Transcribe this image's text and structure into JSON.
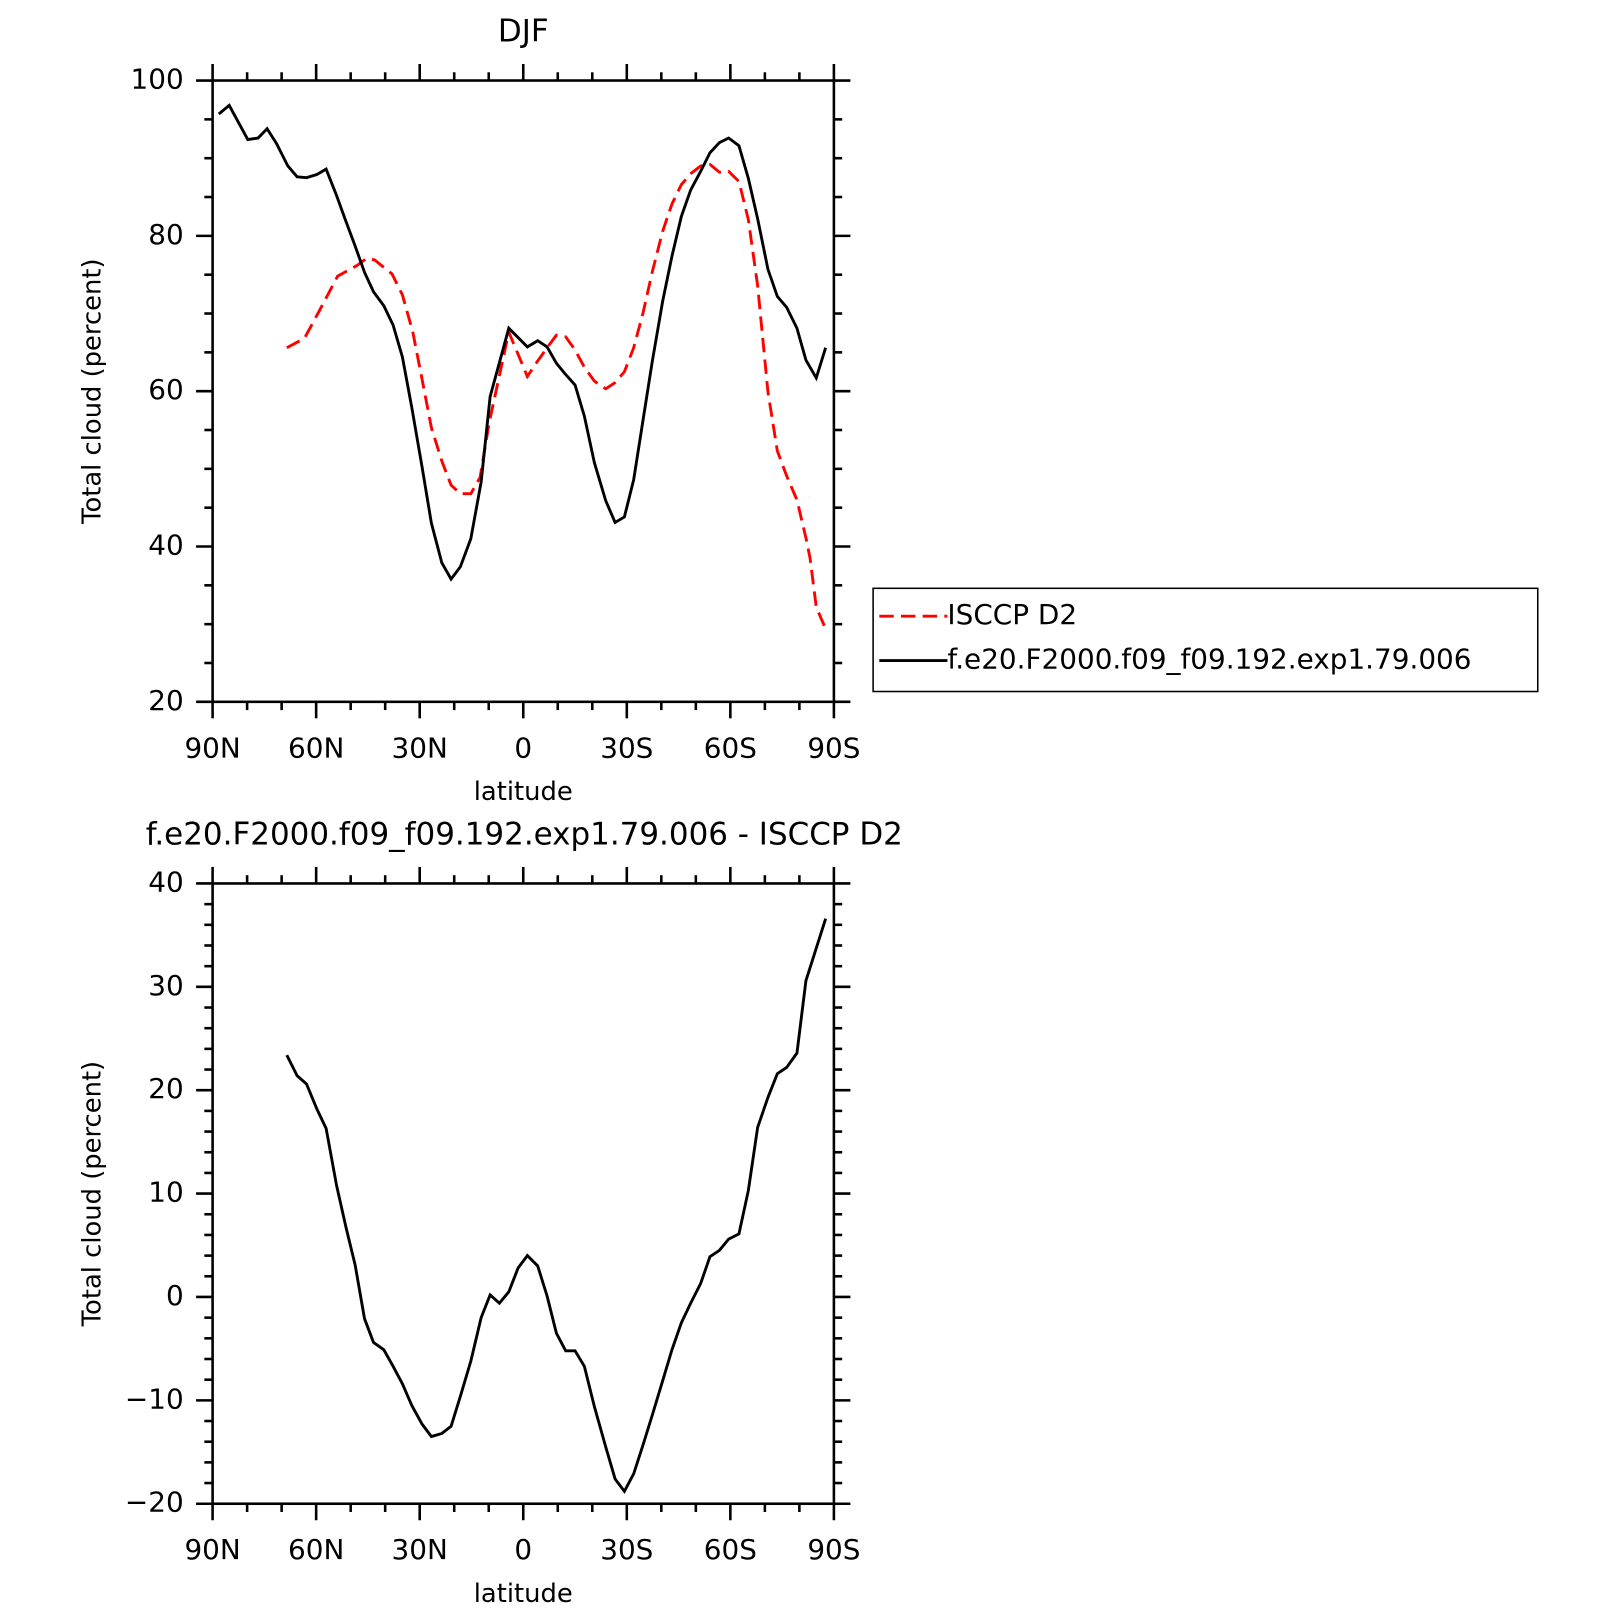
{
  "chart_data": [
    {
      "type": "line",
      "title": "DJF",
      "xlabel": "latitude",
      "ylabel": "Total cloud (percent)",
      "xlim": [
        90,
        -90
      ],
      "ylim": [
        20,
        100
      ],
      "xticks": [
        {
          "value": 90,
          "label": "90N"
        },
        {
          "value": 60,
          "label": "60N"
        },
        {
          "value": 30,
          "label": "30N"
        },
        0,
        {
          "value": -30,
          "label": "30S"
        },
        {
          "value": -60,
          "label": "60S"
        },
        {
          "value": -90,
          "label": "90S"
        }
      ],
      "xminorticks": [
        80,
        70,
        50,
        40,
        20,
        10,
        -10,
        -20,
        -40,
        -50,
        -70,
        -80
      ],
      "yticks": [
        20,
        40,
        60,
        80,
        100
      ],
      "yminorticks": [
        25,
        30,
        35,
        45,
        50,
        55,
        65,
        70,
        75,
        85,
        90,
        95
      ],
      "legend": "right",
      "series": [
        {
          "name": "ISCCP D2",
          "color": "#ff0000",
          "dashed": true,
          "x": [
            68.5,
            63.4,
            58.9,
            53.8,
            48.1,
            45.4,
            43.1,
            38.0,
            35.0,
            32.0,
            29.3,
            26.6,
            23.6,
            20.9,
            18.2,
            15.2,
            12.5,
            9.9,
            4.2,
            -1.2,
            -4.2,
            -6.9,
            -9.6,
            -12.3,
            -15.0,
            -17.7,
            -20.6,
            -23.9,
            -26.6,
            -29.3,
            -32.0,
            -34.7,
            -37.4,
            -40.4,
            -43.1,
            -45.8,
            -48.5,
            -51.4,
            -54.1,
            -56.8,
            -59.5,
            -62.5,
            -65.2,
            -67.9,
            -70.9,
            -73.6,
            -76.3,
            -79.3,
            -81.9,
            -83.1,
            -84.9,
            -87.6
          ],
          "values": [
            65.6,
            66.8,
            70.5,
            74.8,
            76.2,
            77.1,
            76.9,
            75.1,
            72.4,
            67.6,
            61.5,
            55.3,
            51.0,
            47.9,
            46.8,
            46.8,
            48.9,
            55.9,
            67.6,
            61.9,
            63.9,
            65.6,
            67.2,
            67.0,
            65.3,
            63.1,
            61.3,
            60.3,
            61.1,
            62.5,
            65.6,
            70.1,
            75.4,
            80.6,
            84.1,
            86.6,
            88.0,
            89.0,
            89.2,
            88.2,
            88.3,
            87.0,
            82.1,
            73.6,
            59.9,
            52.3,
            49.1,
            46.0,
            41.1,
            38.5,
            32.2,
            29.4
          ]
        },
        {
          "name": "f.e20.F2000.f09_f09.192.exp1.79.006",
          "color": "#000000",
          "dashed": false,
          "x": [
            88.2,
            85.2,
            79.8,
            76.8,
            74.2,
            71.5,
            68.2,
            65.5,
            62.8,
            59.8,
            57.1,
            54.1,
            51.4,
            48.7,
            46.0,
            43.4,
            40.4,
            37.7,
            35.0,
            32.3,
            29.3,
            26.6,
            23.6,
            20.9,
            18.2,
            15.2,
            12.2,
            9.6,
            4.2,
            -1.2,
            -4.2,
            -6.9,
            -9.6,
            -12.0,
            -15.0,
            -17.7,
            -20.6,
            -23.9,
            -26.6,
            -29.3,
            -32.0,
            -34.7,
            -37.4,
            -40.4,
            -43.1,
            -45.8,
            -48.5,
            -51.4,
            -54.1,
            -56.8,
            -59.5,
            -62.5,
            -65.2,
            -67.9,
            -70.9,
            -73.6,
            -76.3,
            -79.3,
            -81.9,
            -84.9,
            -87.6
          ],
          "values": [
            95.7,
            96.8,
            92.4,
            92.6,
            93.8,
            91.9,
            89.0,
            87.6,
            87.5,
            87.9,
            88.6,
            85.2,
            81.9,
            78.7,
            75.3,
            72.8,
            71.0,
            68.5,
            64.4,
            57.9,
            50.2,
            43.0,
            37.9,
            35.8,
            37.4,
            41.0,
            48.3,
            59.3,
            68.1,
            65.7,
            66.5,
            65.7,
            63.6,
            62.3,
            60.8,
            56.8,
            50.8,
            45.9,
            43.1,
            43.8,
            48.6,
            56.3,
            63.9,
            71.6,
            77.4,
            82.5,
            85.9,
            88.3,
            90.7,
            92.0,
            92.6,
            91.6,
            87.4,
            82.2,
            75.7,
            72.2,
            70.8,
            68.1,
            64.0,
            61.7,
            65.6
          ]
        }
      ]
    },
    {
      "type": "line",
      "title": "f.e20.F2000.f09_f09.192.exp1.79.006 - ISCCP D2",
      "xlabel": "latitude",
      "ylabel": "Total cloud (percent)",
      "xlim": [
        90,
        -90
      ],
      "ylim": [
        -20,
        40
      ],
      "xticks": [
        {
          "value": 90,
          "label": "90N"
        },
        {
          "value": 60,
          "label": "60N"
        },
        {
          "value": 30,
          "label": "30N"
        },
        0,
        {
          "value": -30,
          "label": "30S"
        },
        {
          "value": -60,
          "label": "60S"
        },
        {
          "value": -90,
          "label": "90S"
        }
      ],
      "xminorticks": [
        80,
        70,
        50,
        40,
        20,
        10,
        -10,
        -20,
        -40,
        -50,
        -70,
        -80
      ],
      "yticks": [
        {
          "value": -20,
          "label": "−20"
        },
        {
          "value": -10,
          "label": "−10"
        },
        0,
        10,
        20,
        30,
        40
      ],
      "yminorticks": [
        -18,
        -16,
        -14,
        -12,
        -8,
        -6,
        -4,
        -2,
        2,
        4,
        6,
        8,
        12,
        14,
        16,
        18,
        22,
        24,
        26,
        28,
        32,
        34,
        36,
        38
      ],
      "series": [
        {
          "color": "#000000",
          "dashed": false,
          "x": [
            68.5,
            65.5,
            62.8,
            59.8,
            57.1,
            54.1,
            51.4,
            48.7,
            46.0,
            43.4,
            40.4,
            37.7,
            35.0,
            32.3,
            29.3,
            26.6,
            23.6,
            20.9,
            18.2,
            15.2,
            12.2,
            9.6,
            6.9,
            4.2,
            1.5,
            -1.2,
            -4.2,
            -6.9,
            -9.6,
            -12.3,
            -15.0,
            -17.7,
            -20.6,
            -23.9,
            -26.6,
            -29.3,
            -32.0,
            -34.7,
            -37.4,
            -40.4,
            -43.1,
            -45.8,
            -48.5,
            -51.4,
            -54.1,
            -56.8,
            -59.5,
            -62.5,
            -65.2,
            -67.9,
            -70.9,
            -73.6,
            -76.3,
            -79.3,
            -81.9,
            -87.6
          ],
          "values": [
            23.4,
            21.4,
            20.6,
            18.2,
            16.3,
            10.8,
            6.8,
            3.1,
            -2.1,
            -4.4,
            -5.1,
            -6.7,
            -8.4,
            -10.5,
            -12.3,
            -13.5,
            -13.2,
            -12.5,
            -9.6,
            -6.2,
            -2.0,
            0.2,
            -0.6,
            0.5,
            2.8,
            4.0,
            3.0,
            0.1,
            -3.5,
            -5.2,
            -5.2,
            -6.7,
            -10.6,
            -14.5,
            -17.6,
            -18.8,
            -17.1,
            -14.3,
            -11.4,
            -8.1,
            -5.1,
            -2.5,
            -0.6,
            1.3,
            3.9,
            4.5,
            5.6,
            6.1,
            10.3,
            16.4,
            19.3,
            21.6,
            22.2,
            23.6,
            30.6,
            36.6
          ]
        }
      ]
    }
  ]
}
